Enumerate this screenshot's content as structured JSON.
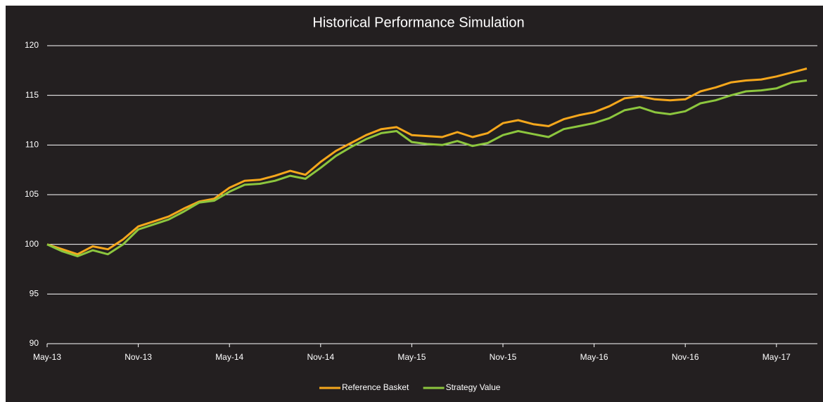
{
  "chart_data": {
    "type": "line",
    "title": "Historical Performance Simulation",
    "categories": [
      "May-13",
      null,
      null,
      null,
      null,
      null,
      "Nov-13",
      null,
      null,
      null,
      null,
      null,
      "May-14",
      null,
      null,
      null,
      null,
      null,
      "Nov-14",
      null,
      null,
      null,
      null,
      null,
      "May-15",
      null,
      null,
      null,
      null,
      null,
      "Nov-15",
      null,
      null,
      null,
      null,
      null,
      "May-16",
      null,
      null,
      null,
      null,
      null,
      "Nov-16",
      null,
      null,
      null,
      null,
      null,
      "May-17",
      null,
      null
    ],
    "series": [
      {
        "name": "Reference Basket",
        "color": "#f5a71c",
        "values": [
          100,
          99.5,
          99.0,
          99.8,
          99.5,
          100.5,
          101.8,
          102.3,
          102.8,
          103.6,
          104.3,
          104.6,
          105.7,
          106.4,
          106.5,
          106.9,
          107.4,
          107.0,
          108.3,
          109.4,
          110.2,
          111.0,
          111.6,
          111.8,
          111.0,
          110.9,
          110.8,
          111.3,
          110.8,
          111.2,
          112.2,
          112.5,
          112.1,
          111.9,
          112.6,
          113.0,
          113.3,
          113.9,
          114.7,
          114.9,
          114.6,
          114.5,
          114.6,
          115.4,
          115.8,
          116.3,
          116.5,
          116.6,
          116.9,
          117.3,
          117.7
        ]
      },
      {
        "name": "Strategy Value",
        "color": "#8cc63e",
        "values": [
          100,
          99.3,
          98.8,
          99.4,
          99.0,
          100.0,
          101.5,
          102.0,
          102.5,
          103.3,
          104.2,
          104.4,
          105.3,
          106.0,
          106.1,
          106.4,
          106.9,
          106.6,
          107.7,
          108.9,
          109.8,
          110.6,
          111.2,
          111.4,
          110.3,
          110.1,
          110.0,
          110.4,
          109.9,
          110.2,
          111.0,
          111.4,
          111.1,
          110.8,
          111.6,
          111.9,
          112.2,
          112.7,
          113.5,
          113.8,
          113.3,
          113.1,
          113.4,
          114.2,
          114.5,
          115.0,
          115.4,
          115.5,
          115.7,
          116.3,
          116.5
        ]
      }
    ],
    "ylim": [
      90,
      120
    ],
    "yticks": [
      90,
      95,
      100,
      105,
      110,
      115,
      120
    ],
    "grid": true,
    "legend": "bottom"
  }
}
